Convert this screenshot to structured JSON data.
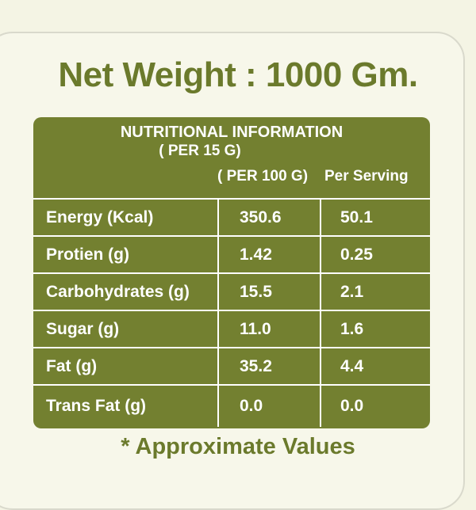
{
  "header": {
    "title": "Net Weight : 1000 Gm."
  },
  "table": {
    "title": "NUTRITIONAL INFORMATION",
    "subtitle": "( PER 15 G)",
    "columns": [
      "( PER 100 G)",
      "Per Serving"
    ],
    "rows": [
      [
        "Energy (Kcal)",
        "350.6",
        "50.1"
      ],
      [
        "Protien (g)",
        "1.42",
        "0.25"
      ],
      [
        "Carbohydrates (g)",
        "15.5",
        "2.1"
      ],
      [
        "Sugar (g)",
        "11.0",
        "1.6"
      ],
      [
        "Fat (g)",
        "35.2",
        "4.4"
      ],
      [
        "Trans Fat (g)",
        "0.0",
        "0.0"
      ]
    ]
  },
  "footer": {
    "note": "* Approximate Values"
  }
}
